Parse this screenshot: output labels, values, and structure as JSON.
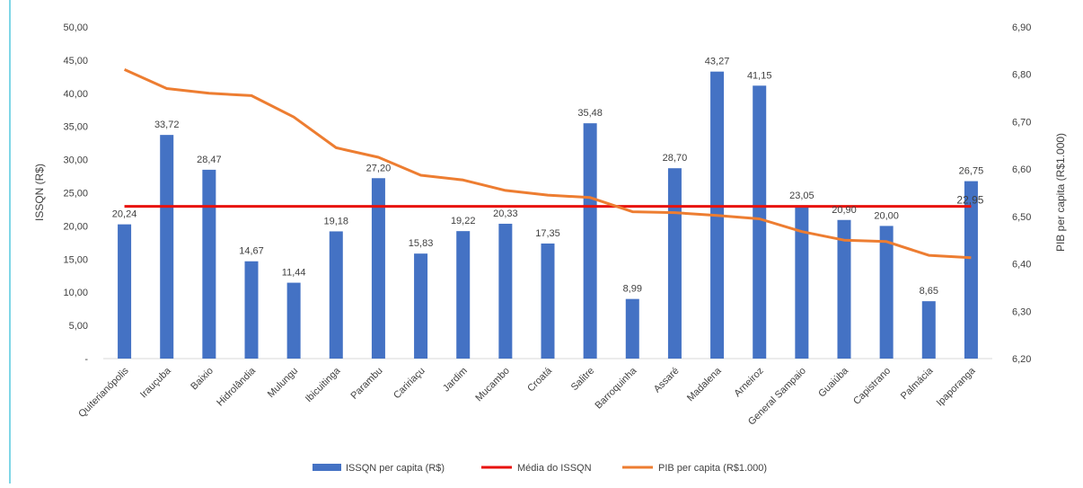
{
  "chart_data": {
    "type": "bar",
    "categories": [
      "Quiterianópolis",
      "Irauçuba",
      "Baixio",
      "Hidrolândia",
      "Mulungu",
      "Ibicuitinga",
      "Parambu",
      "Caririaçu",
      "Jardim",
      "Mucambo",
      "Croatá",
      "Salitre",
      "Barroquinha",
      "Assaré",
      "Madalena",
      "Arneiroz",
      "General Sampaio",
      "Guaiúba",
      "Capistrano",
      "Palmácia",
      "Ipaporanga"
    ],
    "series": [
      {
        "name": "ISSQN per capita (R$)",
        "type": "bar",
        "axis": "left",
        "color": "#4472C4",
        "values": [
          20.24,
          33.72,
          28.47,
          14.67,
          11.44,
          19.18,
          27.2,
          15.83,
          19.22,
          20.33,
          17.35,
          35.48,
          8.99,
          28.7,
          43.27,
          41.15,
          23.05,
          20.9,
          20.0,
          8.65,
          26.75
        ],
        "labels": [
          "20,24",
          "33,72",
          "28,47",
          "14,67",
          "11,44",
          "19,18",
          "27,20",
          "15,83",
          "19,22",
          "20,33",
          "17,35",
          "35,48",
          "8,99",
          "28,70",
          "43,27",
          "41,15",
          "23,05",
          "20,90",
          "20,00",
          "8,65",
          "26,75"
        ]
      },
      {
        "name": "Média do ISSQN",
        "type": "line",
        "axis": "left",
        "color": "#E8120C",
        "value": 22.95,
        "label": "22,95"
      },
      {
        "name": "PIB per capita (R$1.000)",
        "type": "line",
        "axis": "right",
        "color": "#ED7D31",
        "values": [
          6.81,
          6.77,
          6.76,
          6.755,
          6.71,
          6.645,
          6.625,
          6.587,
          6.577,
          6.555,
          6.545,
          6.54,
          6.51,
          6.508,
          6.502,
          6.495,
          6.468,
          6.45,
          6.447,
          6.418,
          6.413
        ]
      }
    ],
    "yaxis_left": {
      "title": "ISSQN (R$)",
      "min": 0,
      "max": 50,
      "ticks": [
        "-",
        "5,00",
        "10,00",
        "15,00",
        "20,00",
        "25,00",
        "30,00",
        "35,00",
        "40,00",
        "45,00",
        "50,00"
      ]
    },
    "yaxis_right": {
      "title": "PIB per capita (R$1.000)",
      "min": 6.2,
      "max": 6.9,
      "ticks": [
        "6,20",
        "6,30",
        "6,40",
        "6,50",
        "6,60",
        "6,70",
        "6,80",
        "6,90"
      ]
    },
    "grid": false,
    "legend_position": "bottom"
  }
}
